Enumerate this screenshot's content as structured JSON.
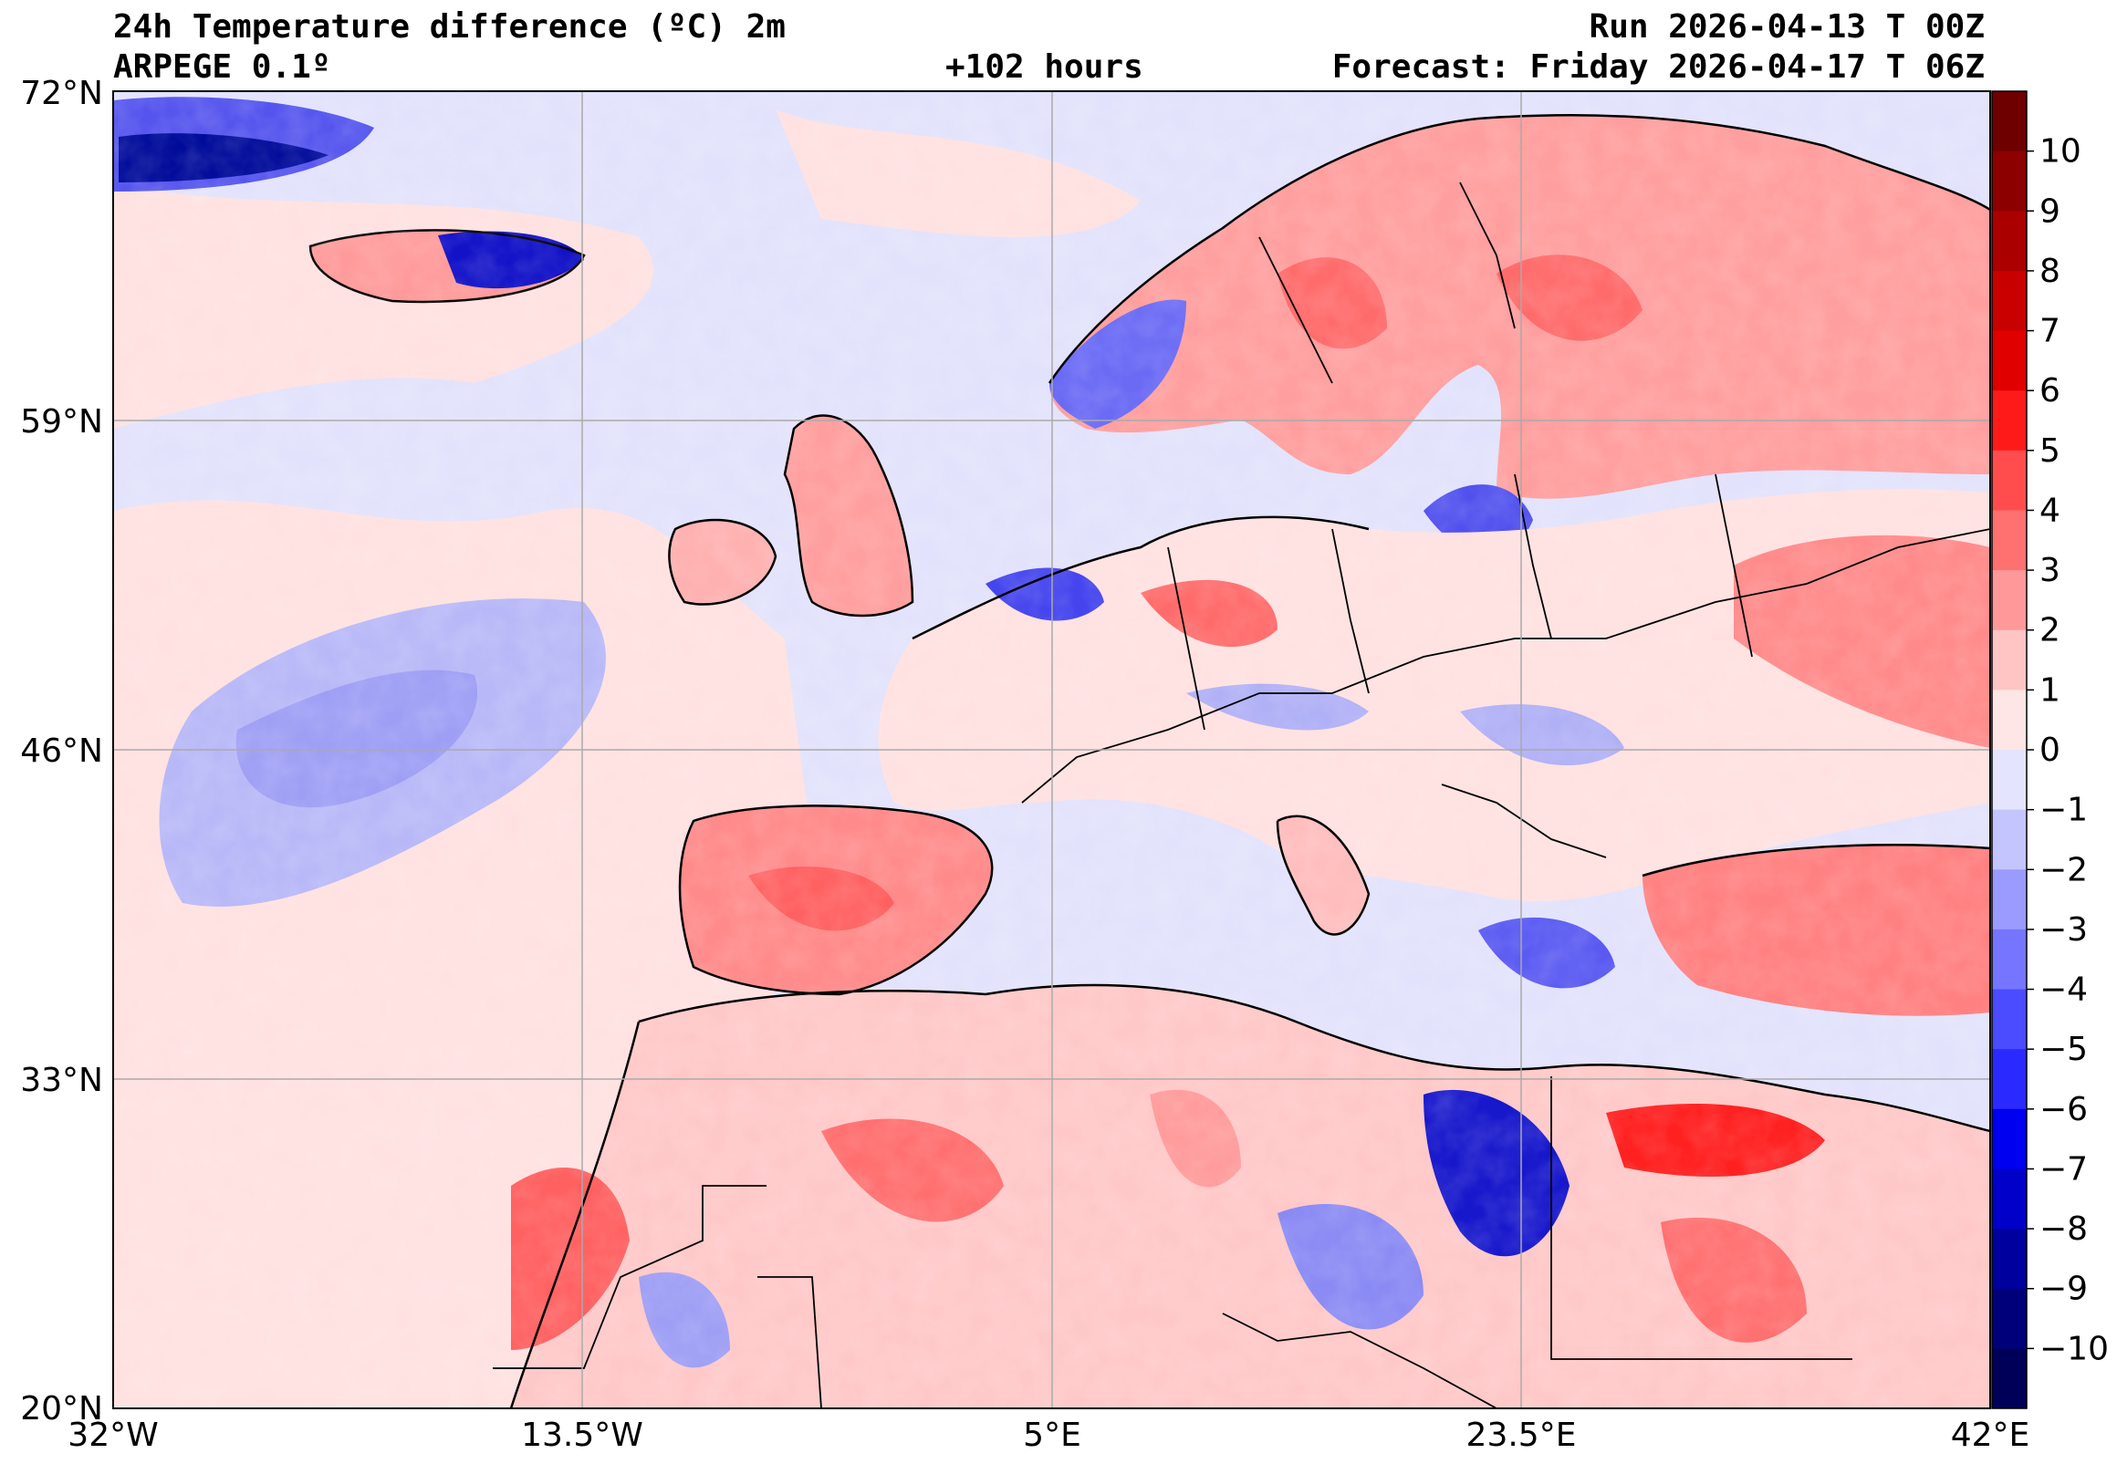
{
  "header": {
    "title": "24h Temperature difference (ºC) 2m",
    "model": "ARPEGE 0.1º",
    "lead_time": "+102 hours",
    "run": "Run 2026-04-13 T 00Z",
    "forecast": "Forecast: Friday 2026-04-17 T 06Z"
  },
  "map": {
    "lat_labels": [
      "72°N",
      "59°N",
      "46°N",
      "33°N",
      "20°N"
    ],
    "lon_labels": [
      "32°W",
      "13.5°W",
      "5°E",
      "23.5°E",
      "42°E"
    ]
  },
  "colorbar": {
    "tick_labels": [
      "10",
      "9",
      "8",
      "7",
      "6",
      "5",
      "4",
      "3",
      "2",
      "1",
      "0",
      "−1",
      "−2",
      "−3",
      "−4",
      "−5",
      "−6",
      "−7",
      "−8",
      "−9",
      "−10"
    ],
    "colors": [
      "#6e0000",
      "#8c0000",
      "#aa0000",
      "#c80000",
      "#e00000",
      "#ff1a1a",
      "#ff4d4d",
      "#ff7070",
      "#ff9999",
      "#ffc4c4",
      "#ffe6e6",
      "#e4e4ff",
      "#c4c4ff",
      "#9a9aff",
      "#7575ff",
      "#4b4bff",
      "#2a2aff",
      "#0000f0",
      "#0000c8",
      "#00009e",
      "#00007a",
      "#000058"
    ]
  },
  "colors": {
    "ocean_base": "#e2e2fc",
    "land_coast": "#000000",
    "grid": "#aaaaaa"
  }
}
